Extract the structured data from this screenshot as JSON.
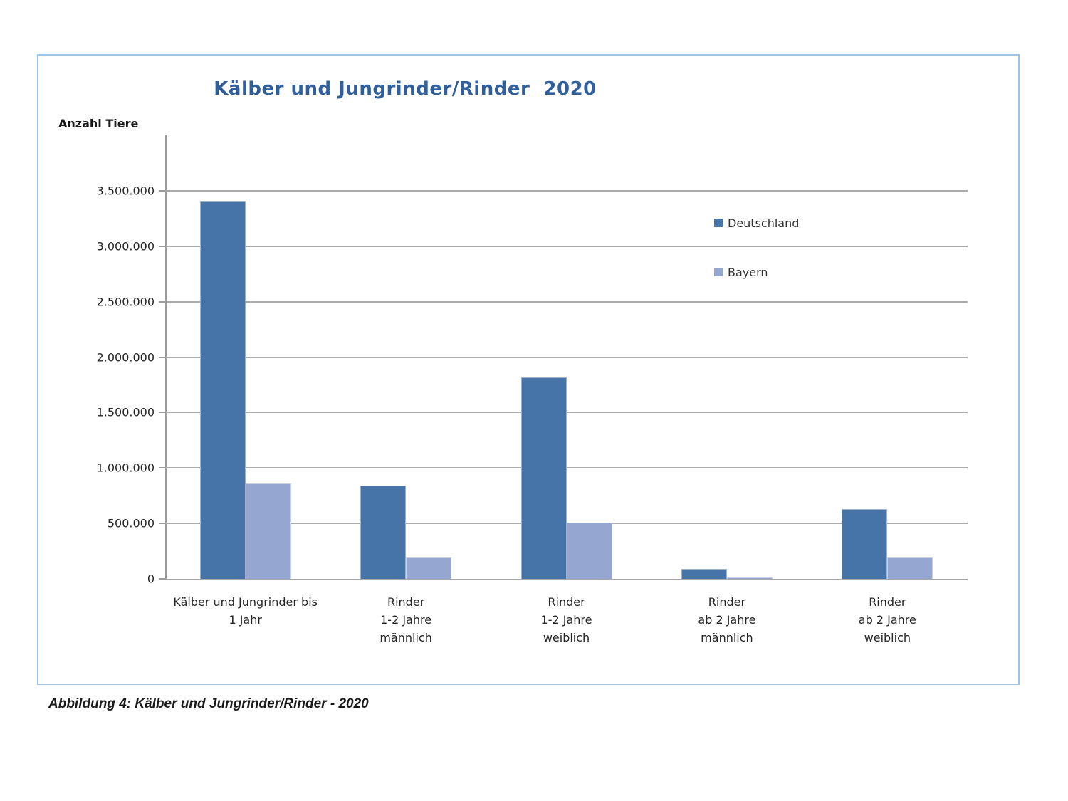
{
  "chart_data": {
    "type": "bar",
    "title": "Kälber und Jungrinder/Rinder  2020",
    "y_axis_title": "Anzahl Tiere",
    "categories": [
      "Kälber und Jungrinder bis 1 Jahr",
      "Rinder 1-2 Jahre männlich",
      "Rinder 1-2 Jahre weiblich",
      "Rinder ab 2 Jahre männlich",
      "Rinder ab 2 Jahre weiblich"
    ],
    "category_label_lines": [
      [
        "Kälber und Jungrinder bis",
        "1 Jahr"
      ],
      [
        "Rinder",
        "1-2 Jahre",
        "männlich"
      ],
      [
        "Rinder",
        "1-2 Jahre",
        "weiblich"
      ],
      [
        "Rinder",
        "ab 2 Jahre",
        "männlich"
      ],
      [
        "Rinder",
        "ab 2 Jahre",
        "weiblich"
      ]
    ],
    "series": [
      {
        "name": "Deutschland",
        "color": "#4674a9",
        "values": [
          3400000,
          840000,
          1820000,
          90000,
          630000
        ]
      },
      {
        "name": "Bayern",
        "color": "#95a7d0",
        "values": [
          860000,
          190000,
          510000,
          15000,
          190000
        ]
      }
    ],
    "y_ticks": [
      {
        "value": 0,
        "label": "0"
      },
      {
        "value": 500000,
        "label": "500.000"
      },
      {
        "value": 1000000,
        "label": "1.000.000"
      },
      {
        "value": 1500000,
        "label": "1.500.000"
      },
      {
        "value": 2000000,
        "label": "2.000.000"
      },
      {
        "value": 2500000,
        "label": "2.500.000"
      },
      {
        "value": 3000000,
        "label": "3.000.000"
      },
      {
        "value": 3500000,
        "label": "3.500.000"
      }
    ],
    "y_axis_max": 4000000,
    "grid": true,
    "legend_position": "upper-right-inside",
    "ylim": [
      0,
      4000000
    ]
  },
  "caption": {
    "text": "Abbildung 4: Kälber und Jungrinder/Rinder - 2020"
  },
  "colors": {
    "title": "#2f5f9c",
    "deutschland": "#4674a9",
    "bayern": "#95a7d0",
    "gridline": "#ababab",
    "axis": "#9b9b9b",
    "box_border": "#9dc3e6"
  }
}
